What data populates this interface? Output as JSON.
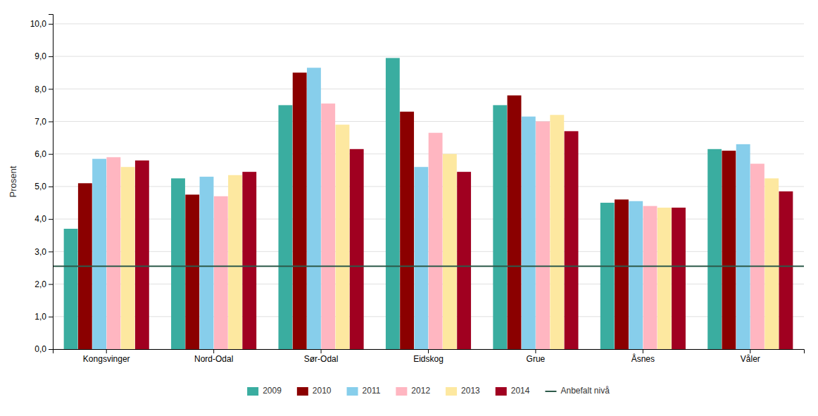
{
  "chart_data": {
    "type": "bar",
    "categories": [
      "Kongsvinger",
      "Nord-Odal",
      "Sør-Odal",
      "Eidskog",
      "Grue",
      "Åsnes",
      "Våler"
    ],
    "series": [
      {
        "name": "2009",
        "color": "#3aada0",
        "values": [
          3.7,
          5.25,
          7.5,
          8.95,
          7.5,
          4.5,
          6.15
        ]
      },
      {
        "name": "2010",
        "color": "#8b0000",
        "values": [
          5.1,
          4.75,
          8.5,
          7.3,
          7.8,
          4.6,
          6.1
        ]
      },
      {
        "name": "2011",
        "color": "#87ceeb",
        "values": [
          5.85,
          5.3,
          8.65,
          5.6,
          7.15,
          4.55,
          6.3
        ]
      },
      {
        "name": "2012",
        "color": "#ffb6c1",
        "values": [
          5.9,
          4.7,
          7.55,
          6.65,
          7.0,
          4.4,
          5.7
        ]
      },
      {
        "name": "2013",
        "color": "#fde8a0",
        "values": [
          5.6,
          5.35,
          6.9,
          6.0,
          7.2,
          4.35,
          5.25
        ]
      },
      {
        "name": "2014",
        "color": "#a00020",
        "values": [
          5.8,
          5.45,
          6.15,
          5.45,
          6.7,
          4.35,
          4.85
        ]
      }
    ],
    "reference_line": {
      "name": "Anbefalt nivå",
      "value": 2.55,
      "color": "#2d5a4a"
    },
    "ylabel": "Prosent",
    "ylim": [
      0,
      10.3
    ],
    "yticks": [
      {
        "value": 0.0,
        "label": "0,0"
      },
      {
        "value": 1.0,
        "label": "1,0"
      },
      {
        "value": 2.0,
        "label": "2,0"
      },
      {
        "value": 3.0,
        "label": "3,0"
      },
      {
        "value": 4.0,
        "label": "4,0"
      },
      {
        "value": 5.0,
        "label": "5,0"
      },
      {
        "value": 6.0,
        "label": "6,0"
      },
      {
        "value": 7.0,
        "label": "7,0"
      },
      {
        "value": 8.0,
        "label": "8,0"
      },
      {
        "value": 9.0,
        "label": "9,0"
      },
      {
        "value": 10.0,
        "label": "10,0"
      }
    ],
    "grid": true,
    "legend": "bottom"
  }
}
